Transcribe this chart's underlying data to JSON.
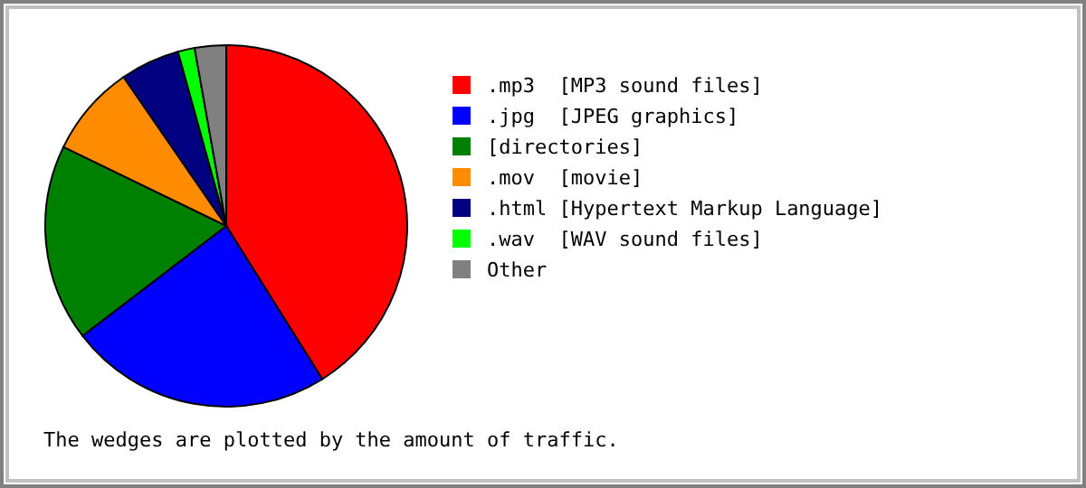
{
  "chart_data": {
    "type": "pie",
    "categories": [
      ".mp3  [MP3 sound files]",
      ".jpg  [JPEG graphics]",
      "[directories]",
      ".mov  [movie]",
      ".html [Hypertext Markup Language]",
      ".wav  [WAV sound files]",
      "Other"
    ],
    "values": [
      41.1,
      23.5,
      17.6,
      8.2,
      5.3,
      1.5,
      2.8
    ],
    "colors": [
      "#ff0000",
      "#0000ff",
      "#008000",
      "#ff8c00",
      "#000080",
      "#00ff00",
      "#808080"
    ],
    "legend": "right",
    "annotations": [
      "The wedges are plotted by the amount of traffic."
    ]
  }
}
